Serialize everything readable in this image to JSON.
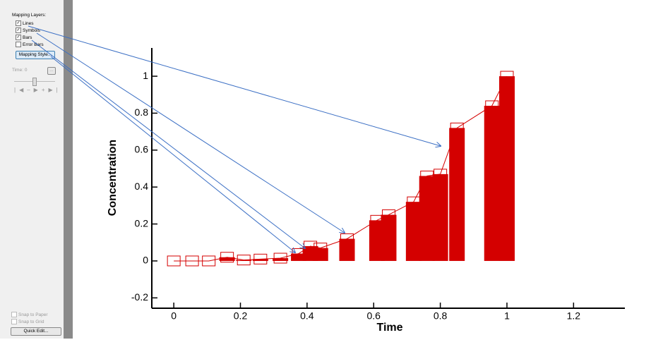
{
  "panel": {
    "heading": "Mapping Layers:",
    "layers": [
      {
        "label": "Lines",
        "checked": true
      },
      {
        "label": "Symbols",
        "checked": true
      },
      {
        "label": "Bars",
        "checked": true
      },
      {
        "label": "Error Bars",
        "checked": false
      }
    ],
    "mapping_button": "Mapping Style...",
    "time_label": "Time: 0",
    "time_button": "...",
    "snap": [
      "Snap to Paper",
      "Snap to Grid"
    ],
    "quick_edit": "Quick Edit..."
  },
  "chart_data": {
    "type": "bar",
    "x_label": "Time",
    "y_label": "Concentration",
    "x": [
      0,
      0.055,
      0.105,
      0.16,
      0.21,
      0.26,
      0.32,
      0.375,
      0.41,
      0.44,
      0.52,
      0.61,
      0.645,
      0.72,
      0.76,
      0.8,
      0.85,
      0.955,
      1.0
    ],
    "values": [
      0,
      0,
      0,
      0.02,
      0.005,
      0.01,
      0.015,
      0.04,
      0.08,
      0.07,
      0.12,
      0.22,
      0.25,
      0.32,
      0.46,
      0.47,
      0.72,
      0.84,
      1.0
    ],
    "color": "#d40000",
    "xlim": [
      -0.066,
      1.354
    ],
    "xticks": [
      0,
      0.2,
      0.4,
      0.6,
      0.8,
      1,
      1.2
    ],
    "ylim": [
      -0.256,
      1.153
    ],
    "yticks": [
      -0.2,
      0,
      0.2,
      0.4,
      0.6,
      0.8,
      1
    ]
  }
}
